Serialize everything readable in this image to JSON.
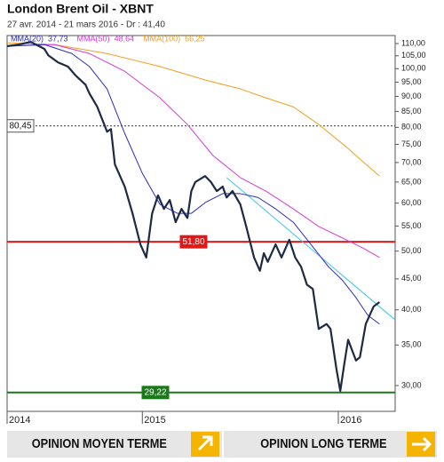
{
  "chart_data": {
    "type": "line",
    "title": "London Brent Oil - XBNT",
    "subtitle": "27 avr. 2014 - 21 mars 2016 - Dr : 41,40",
    "log": true,
    "xlim": [
      2014.31,
      2016.29
    ],
    "xticks": [
      {
        "value": 2014.31,
        "label": "2014"
      },
      2015,
      2016
    ],
    "ylim": [
      27.2,
      113.4
    ],
    "yticks": [
      {
        "value": 110,
        "label": "110,00"
      },
      {
        "value": 105,
        "label": "105,00"
      },
      {
        "value": 100,
        "label": "100,00"
      },
      {
        "value": 95,
        "label": "95,00"
      },
      {
        "value": 90,
        "label": "90,00"
      },
      {
        "value": 85,
        "label": "85,00"
      },
      {
        "value": 80,
        "label": "80,00"
      },
      {
        "value": 75,
        "label": "75,00"
      },
      {
        "value": 70,
        "label": "70,00"
      },
      {
        "value": 65,
        "label": "65,00"
      },
      {
        "value": 60,
        "label": "60,00"
      },
      {
        "value": 55,
        "label": "55,00"
      },
      {
        "value": 50,
        "label": "50,00"
      },
      {
        "value": 45,
        "label": "45,00"
      },
      {
        "value": 40,
        "label": "40,00"
      },
      {
        "value": 35,
        "label": "35,00"
      },
      {
        "value": 30,
        "label": "30,00"
      }
    ],
    "series": [
      {
        "color": "#1c2a44",
        "width": 2.2,
        "x": [
          2014.31,
          2014.37,
          2014.43,
          2014.5,
          2014.52,
          2014.57,
          2014.62,
          2014.66,
          2014.71,
          2014.73,
          2014.77,
          2014.82,
          2014.84,
          2014.86,
          2014.91,
          2014.95,
          2014.99,
          2015.02,
          2015.05,
          2015.08,
          2015.11,
          2015.14,
          2015.17,
          2015.2,
          2015.23,
          2015.25,
          2015.27,
          2015.32,
          2015.35,
          2015.38,
          2015.41,
          2015.43,
          2015.46,
          2015.5,
          2015.53,
          2015.57,
          2015.6,
          2015.62,
          2015.64,
          2015.68,
          2015.71,
          2015.75,
          2015.78,
          2015.81,
          2015.84,
          2015.87,
          2015.9,
          2015.94,
          2015.96,
          2015.99,
          2016.01,
          2016.03,
          2016.05,
          2016.09,
          2016.11,
          2016.14,
          2016.18,
          2016.21
        ],
        "values": [
          108.9,
          109.6,
          110.7,
          107.8,
          105.2,
          102.4,
          100.8,
          97.4,
          94.1,
          91,
          86.5,
          78.7,
          79.5,
          69.5,
          63.9,
          57.7,
          51.3,
          48.8,
          57.7,
          61.8,
          58.7,
          60.7,
          55.8,
          58.7,
          56.7,
          62.8,
          65,
          66.5,
          65,
          62.8,
          63.9,
          61.3,
          62.8,
          59.7,
          54.9,
          48.8,
          46.4,
          49.6,
          48,
          51.3,
          48.8,
          52.2,
          48.8,
          47.1,
          44,
          43.3,
          37.2,
          37.9,
          37.2,
          32,
          29.4,
          32.5,
          35.7,
          33,
          33.4,
          37.9,
          40.5,
          41.2
        ]
      },
      {
        "name": "MMA(20)",
        "color": "#2b2bbf",
        "width": 1,
        "last": {
          "value": 37.73,
          "label": "37,73"
        },
        "x": [
          2014.31,
          2014.5,
          2014.64,
          2014.73,
          2014.82,
          2014.91,
          2015.0,
          2015.09,
          2015.18,
          2015.25,
          2015.32,
          2015.41,
          2015.5,
          2015.59,
          2015.68,
          2015.77,
          2015.86,
          2015.95,
          2016.02,
          2016.09,
          2016.15,
          2016.21
        ],
        "values": [
          108.9,
          109.6,
          105.9,
          100.8,
          92.6,
          78.2,
          67.2,
          59.7,
          57.7,
          57.7,
          60.1,
          62.2,
          62.2,
          61.3,
          58.7,
          55.8,
          51.3,
          47.1,
          44.8,
          41.9,
          39.2,
          37.9
        ]
      },
      {
        "name": "MMA(50)",
        "color": "#d63ad6",
        "width": 1,
        "last": {
          "value": 48.64,
          "label": "48,64"
        },
        "x": [
          2014.31,
          2014.55,
          2014.73,
          2014.91,
          2015.09,
          2015.23,
          2015.36,
          2015.5,
          2015.63,
          2015.77,
          2015.9,
          2016.04,
          2016.13,
          2016.21
        ],
        "values": [
          108.9,
          109.6,
          105.9,
          99.0,
          89.5,
          80.9,
          71.9,
          66.1,
          62.8,
          58.7,
          54.9,
          52.2,
          50.5,
          48.8
        ]
      },
      {
        "name": "MMA(100)",
        "color": "#f0a020",
        "width": 1,
        "last": {
          "value": 66.25,
          "label": "66,25"
        },
        "x": [
          2014.31,
          2014.55,
          2014.82,
          2015.09,
          2015.32,
          2015.5,
          2015.63,
          2015.77,
          2015.9,
          2016.04,
          2016.13,
          2016.21
        ],
        "values": [
          110.3,
          109.6,
          105.9,
          100.8,
          95.8,
          92.6,
          89.5,
          86.5,
          80.9,
          74.3,
          70.0,
          66.5
        ]
      },
      {
        "color": "#3cc8e8",
        "width": 1,
        "x": [
          2015.43,
          2016.29
        ],
        "values": [
          66.1,
          38.5
        ]
      }
    ],
    "levels": [
      {
        "value": 80.45,
        "label": "80,45",
        "color": "#333333",
        "style": "dotted"
      },
      {
        "value": 51.8,
        "label": "51,80",
        "color": "#e01818",
        "style": "solid"
      },
      {
        "value": 29.22,
        "label": "29,22",
        "color": "#1a7a1a",
        "style": "solid"
      }
    ]
  },
  "footer": [
    "OPINION MOYEN TERME",
    "OPINION LONG TERME"
  ]
}
